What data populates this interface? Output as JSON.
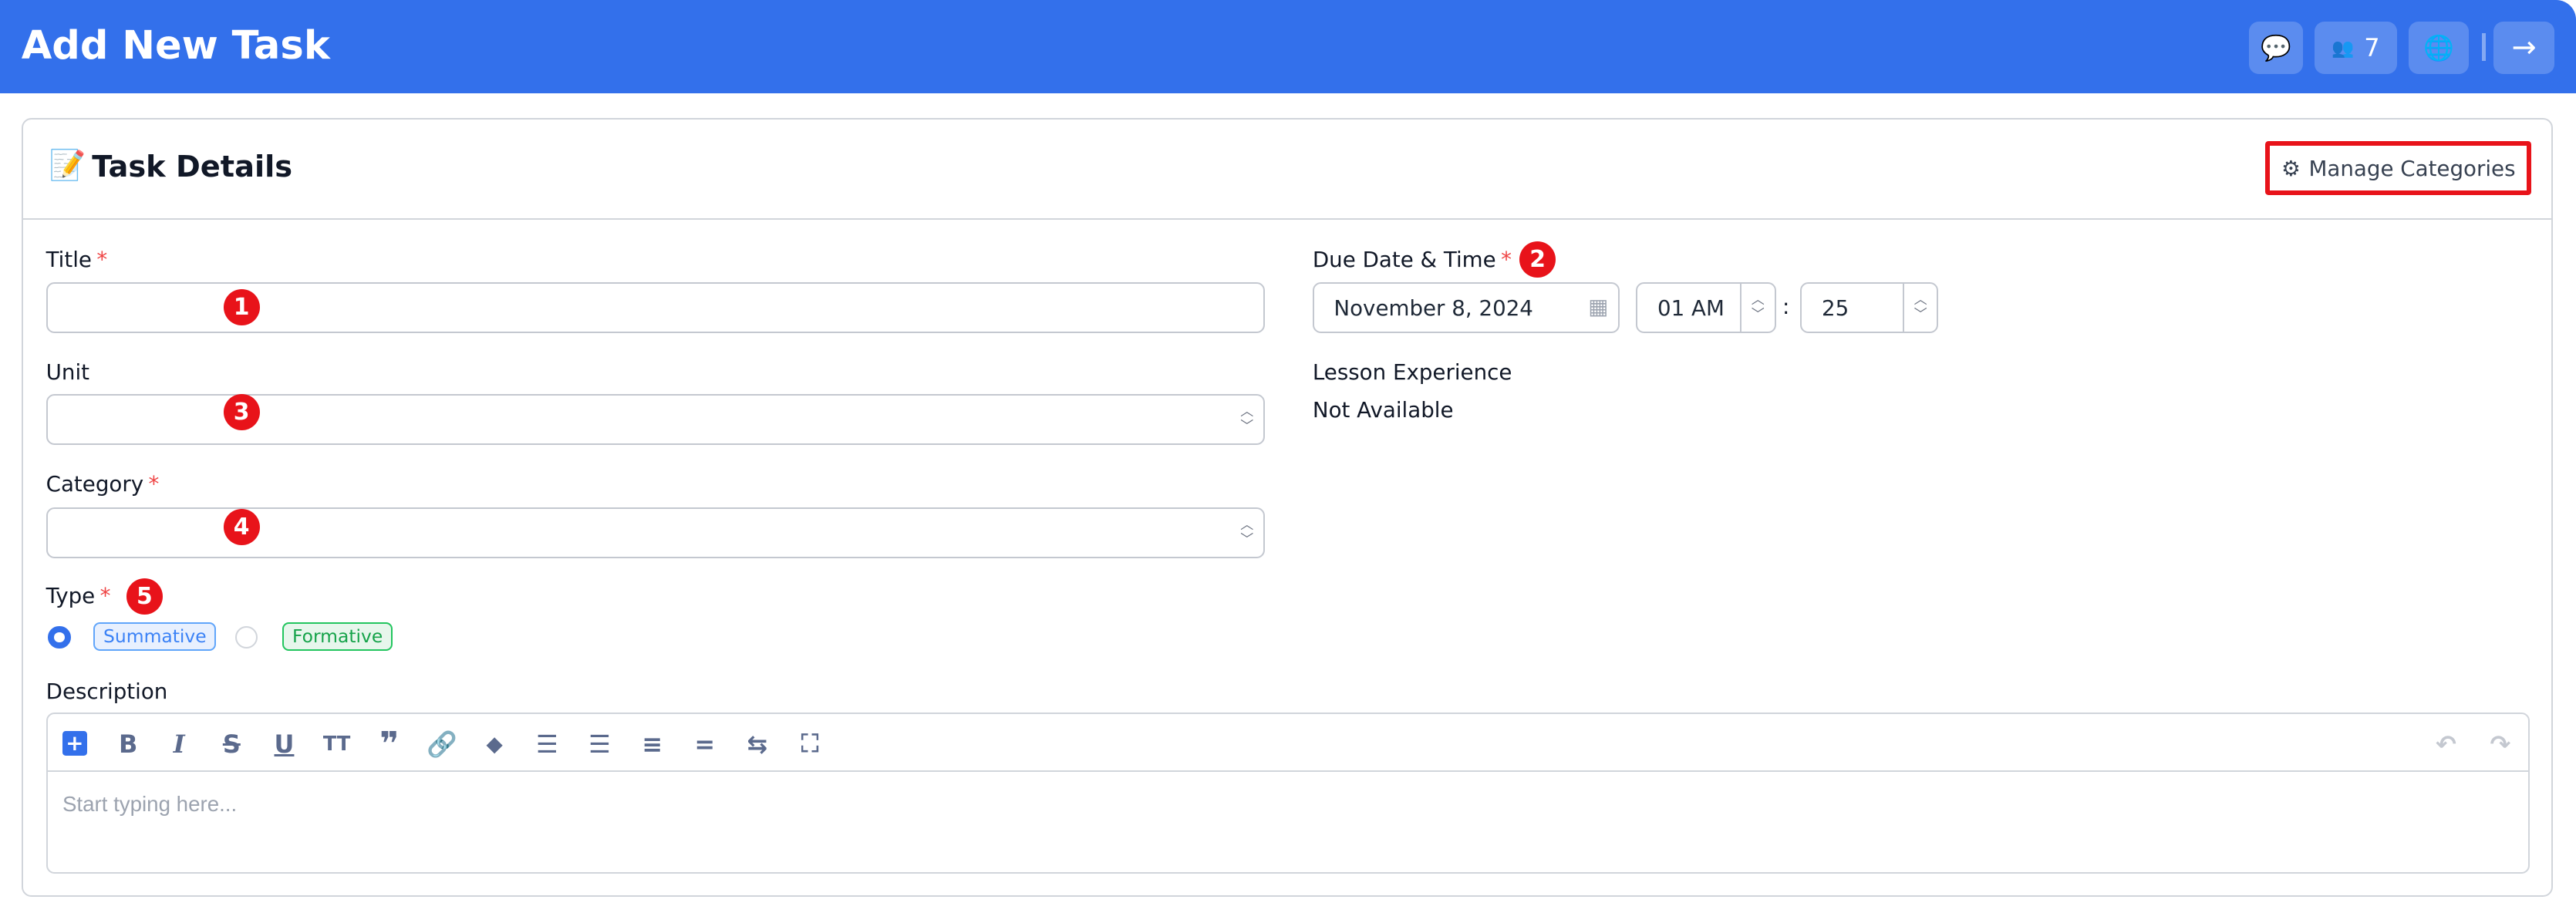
{
  "header": {
    "title": "Add New Task",
    "participants_count": "7",
    "icons": [
      "chat-icon",
      "users-icon",
      "globe-icon",
      "arrow-right-icon"
    ]
  },
  "card": {
    "title": "Task Details",
    "emoji": "📝",
    "manage_categories_label": "Manage Categories"
  },
  "form": {
    "title": {
      "label": "Title",
      "required": "*",
      "value": ""
    },
    "unit": {
      "label": "Unit",
      "value": ""
    },
    "category": {
      "label": "Category",
      "required": "*",
      "value": ""
    },
    "type": {
      "label": "Type",
      "required": "*",
      "options": [
        "Summative",
        "Formative"
      ],
      "selected": "Summative"
    },
    "description": {
      "label": "Description",
      "placeholder": "Start typing here..."
    },
    "due": {
      "label": "Due Date & Time",
      "required": "*",
      "date": "November 8, 2024",
      "hour": "01 AM",
      "separator": ":",
      "minute": "25"
    },
    "lesson_experience": {
      "label": "Lesson Experience",
      "value": "Not Available"
    }
  },
  "annotations": [
    "1",
    "2",
    "3",
    "4",
    "5"
  ],
  "colors": {
    "primary": "#3370eb",
    "annotation": "#e8131a",
    "summative": "#3b82f6",
    "formative": "#16a34a"
  }
}
